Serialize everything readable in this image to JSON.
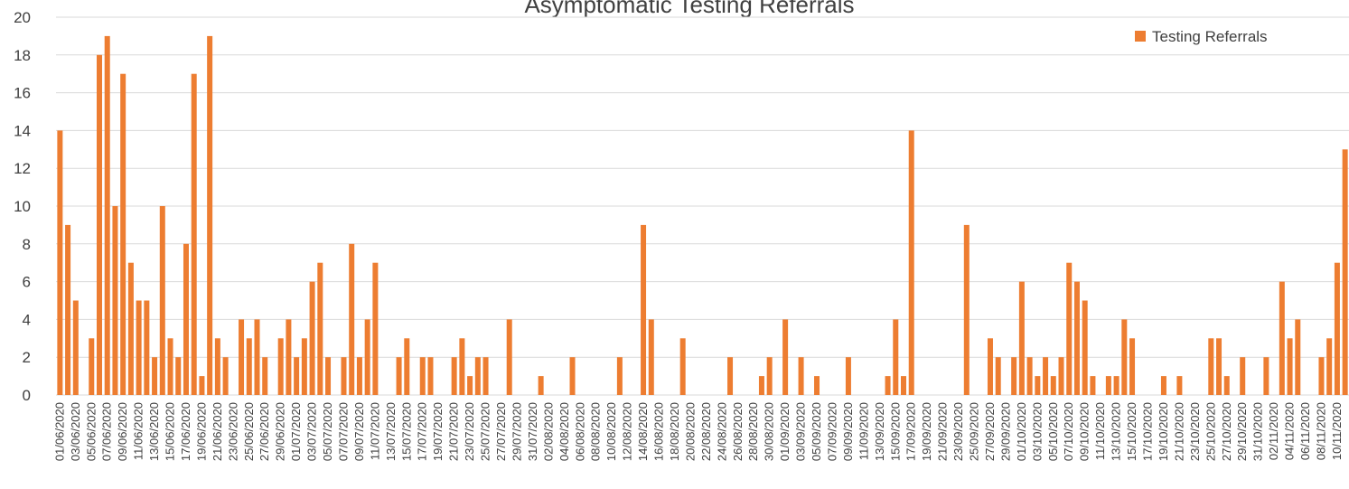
{
  "chart_data": {
    "type": "bar",
    "title": "Asymptomatic Testing Referrals",
    "categories": [
      "01/06/2020",
      null,
      "03/06/2020",
      null,
      "05/06/2020",
      null,
      "07/06/2020",
      null,
      "09/06/2020",
      null,
      "11/06/2020",
      null,
      "13/06/2020",
      null,
      "15/06/2020",
      null,
      "17/06/2020",
      null,
      "19/06/2020",
      null,
      "21/06/2020",
      null,
      "23/06/2020",
      null,
      "25/06/2020",
      null,
      "27/06/2020",
      null,
      "29/06/2020",
      null,
      "01/07/2020",
      null,
      "03/07/2020",
      null,
      "05/07/2020",
      null,
      "07/07/2020",
      null,
      "09/07/2020",
      null,
      "11/07/2020",
      null,
      "13/07/2020",
      null,
      "15/07/2020",
      null,
      "17/07/2020",
      null,
      "19/07/2020",
      null,
      "21/07/2020",
      null,
      "23/07/2020",
      null,
      "25/07/2020",
      null,
      "27/07/2020",
      null,
      "29/07/2020",
      null,
      "31/07/2020",
      null,
      "02/08/2020",
      null,
      "04/08/2020",
      null,
      "06/08/2020",
      null,
      "08/08/2020",
      null,
      "10/08/2020",
      null,
      "12/08/2020",
      null,
      "14/08/2020",
      null,
      "16/08/2020",
      null,
      "18/08/2020",
      null,
      "20/08/2020",
      null,
      "22/08/2020",
      null,
      "24/08/2020",
      null,
      "26/08/2020",
      null,
      "28/08/2020",
      null,
      "30/08/2020",
      null,
      "01/09/2020",
      null,
      "03/09/2020",
      null,
      "05/09/2020",
      null,
      "07/09/2020",
      null,
      "09/09/2020",
      null,
      "11/09/2020",
      null,
      "13/09/2020",
      null,
      "15/09/2020",
      null,
      "17/09/2020",
      null,
      "19/09/2020",
      null,
      "21/09/2020",
      null,
      "23/09/2020",
      null,
      "25/09/2020",
      null,
      "27/09/2020",
      null,
      "29/09/2020",
      null,
      "01/10/2020",
      null,
      "03/10/2020",
      null,
      "05/10/2020",
      null,
      "07/10/2020",
      null,
      "09/10/2020",
      null,
      "11/10/2020",
      null,
      "13/10/2020",
      null,
      "15/10/2020",
      null,
      "17/10/2020",
      null,
      "19/10/2020",
      null,
      "21/10/2020",
      null,
      "23/10/2020",
      null,
      "25/10/2020",
      null,
      "27/10/2020",
      null,
      "29/10/2020",
      null,
      "31/10/2020",
      null,
      "02/11/2020",
      null,
      "04/11/2020",
      null,
      "06/11/2020",
      null,
      "08/11/2020",
      null,
      "10/11/2020",
      null
    ],
    "series": [
      {
        "name": "Testing Referrals",
        "color": "#ed7d31",
        "values": [
          14,
          9,
          5,
          0,
          3,
          18,
          19,
          10,
          17,
          7,
          5,
          5,
          2,
          10,
          3,
          2,
          8,
          17,
          1,
          19,
          3,
          2,
          0,
          4,
          3,
          4,
          2,
          0,
          3,
          4,
          2,
          3,
          6,
          7,
          2,
          0,
          2,
          8,
          2,
          4,
          7,
          0,
          0,
          2,
          3,
          0,
          2,
          2,
          0,
          0,
          2,
          3,
          1,
          2,
          2,
          0,
          0,
          4,
          0,
          0,
          0,
          1,
          0,
          0,
          0,
          2,
          0,
          0,
          0,
          0,
          0,
          2,
          0,
          0,
          9,
          4,
          0,
          0,
          0,
          3,
          0,
          0,
          0,
          0,
          0,
          2,
          0,
          0,
          0,
          1,
          2,
          0,
          4,
          0,
          2,
          0,
          1,
          0,
          0,
          0,
          2,
          0,
          0,
          0,
          0,
          1,
          4,
          1,
          14,
          0,
          0,
          0,
          0,
          0,
          0,
          9,
          0,
          0,
          3,
          2,
          0,
          2,
          6,
          2,
          1,
          2,
          1,
          2,
          7,
          6,
          5,
          1,
          0,
          1,
          1,
          4,
          3,
          0,
          0,
          0,
          1,
          0,
          1,
          0,
          0,
          0,
          3,
          3,
          1,
          0,
          2,
          0,
          0,
          2,
          0,
          6,
          3,
          4,
          0,
          0,
          2,
          3,
          7,
          13
        ]
      }
    ],
    "ylim": [
      0,
      20
    ],
    "yticks": [
      0,
      2,
      4,
      6,
      8,
      10,
      12,
      14,
      16,
      18,
      20
    ],
    "grid": true,
    "legend": "top-right"
  }
}
